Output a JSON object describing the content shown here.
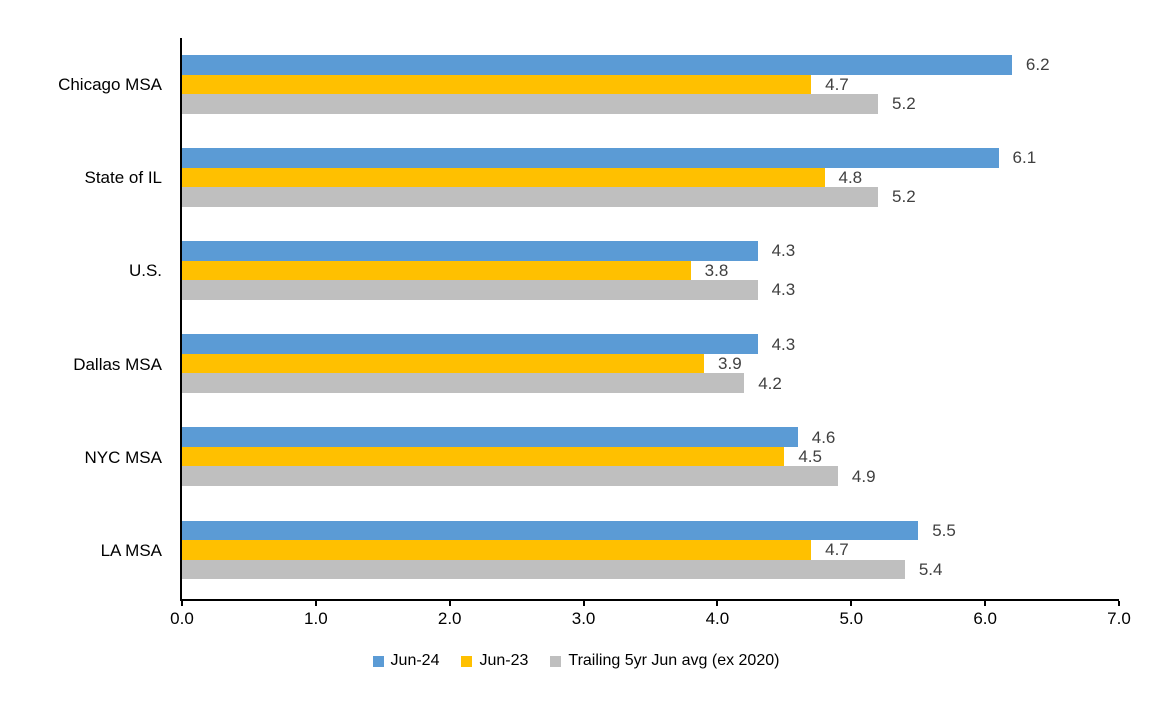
{
  "chart_data": {
    "type": "bar",
    "orientation": "horizontal",
    "title": "",
    "xlabel": "",
    "ylabel": "",
    "categories": [
      "Chicago MSA",
      "State of IL",
      "U.S.",
      "Dallas MSA",
      "NYC MSA",
      "LA MSA"
    ],
    "series": [
      {
        "name": "Jun-24",
        "color": "#5B9BD5",
        "values": [
          6.2,
          6.1,
          4.3,
          4.3,
          4.6,
          5.5
        ]
      },
      {
        "name": "Jun-23",
        "color": "#FFC000",
        "values": [
          4.7,
          4.8,
          3.8,
          3.9,
          4.5,
          4.7
        ]
      },
      {
        "name": "Trailing 5yr Jun avg (ex 2020)",
        "color": "#BFBFBF",
        "values": [
          5.2,
          5.2,
          4.3,
          4.2,
          4.9,
          5.4
        ]
      }
    ],
    "xlim": [
      0,
      7
    ],
    "x_ticks": [
      "0.0",
      "1.0",
      "2.0",
      "3.0",
      "4.0",
      "5.0",
      "6.0",
      "7.0"
    ],
    "value_label_decimals": 1,
    "grid": false,
    "legend_position": "bottom",
    "colors": {
      "value_label": "#404040",
      "axis_line": "#000000",
      "category_label": "#000000",
      "background": "#FFFFFF"
    }
  }
}
